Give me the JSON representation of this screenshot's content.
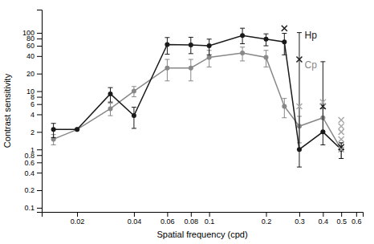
{
  "chart_data": {
    "type": "line",
    "log": true,
    "xlabel": "Spatial frequency (cpd)",
    "ylabel": "Contrast sensitivity",
    "xlim": [
      0.013,
      0.65
    ],
    "ylim": [
      0.085,
      250
    ],
    "xticks": [
      0.02,
      0.04,
      0.06,
      0.08,
      0.1,
      0.2,
      0.3,
      0.4,
      0.5,
      0.6
    ],
    "yticks": [
      0.1,
      0.2,
      0.4,
      0.6,
      0.8,
      1,
      2,
      4,
      6,
      8,
      10,
      20,
      40,
      60,
      80,
      100
    ],
    "series": [
      {
        "name": "Cp",
        "type": "line",
        "marker": "o",
        "color": "#888888",
        "x": [
          0.015,
          0.02,
          0.03,
          0.04,
          0.06,
          0.08,
          0.1,
          0.15,
          0.2,
          0.25,
          0.3,
          0.4,
          0.5
        ],
        "values": [
          1.5,
          2.2,
          5.0,
          10,
          25,
          25,
          38,
          45,
          38,
          5.5,
          2.5,
          3.5,
          1.0
        ],
        "yerr_lo": [
          0.3,
          0.0,
          1.2,
          2.0,
          10,
          10,
          12,
          12,
          12,
          2.0,
          1.2,
          1.5,
          0.3
        ],
        "yerr_hi": [
          0.3,
          0.0,
          1.2,
          2.0,
          10,
          10,
          12,
          12,
          12,
          2.0,
          1.2,
          1.5,
          0.3
        ]
      },
      {
        "name": "Hp",
        "type": "line",
        "marker": "o",
        "color": "#1a1a1a",
        "x": [
          0.015,
          0.02,
          0.03,
          0.04,
          0.06,
          0.08,
          0.1,
          0.15,
          0.2,
          0.25,
          0.3,
          0.4,
          0.5
        ],
        "values": [
          2.2,
          2.2,
          9.0,
          3.8,
          63,
          62,
          60,
          90,
          78,
          70,
          1.0,
          2.0,
          1.0
        ],
        "yerr_lo": [
          0.6,
          0.0,
          2.5,
          1.5,
          20,
          18,
          18,
          25,
          18,
          28,
          0.5,
          0.8,
          0.3
        ],
        "yerr_hi": [
          0.6,
          0.0,
          2.5,
          1.5,
          20,
          22,
          18,
          30,
          18,
          28,
          100,
          30,
          0.3
        ]
      },
      {
        "type": "scatter",
        "marker": "x",
        "color": "#1a1a1a",
        "x": [
          0.25,
          0.3,
          0.4,
          0.5
        ],
        "values": [
          120,
          35,
          5.5,
          1.1
        ]
      },
      {
        "type": "scatter",
        "marker": "x",
        "color": "#aaaaaa",
        "x": [
          0.3,
          0.4,
          0.5,
          0.5,
          0.5,
          0.5,
          0.5
        ],
        "values": [
          5.5,
          6.5,
          3.2,
          2.5,
          2.0,
          1.5,
          1.0
        ]
      }
    ],
    "annotations": [
      {
        "text": "Hp",
        "x": 0.32,
        "y": 80,
        "color": "#1a1a1a"
      },
      {
        "text": "Cp",
        "x": 0.32,
        "y": 25,
        "color": "#888888"
      }
    ]
  }
}
